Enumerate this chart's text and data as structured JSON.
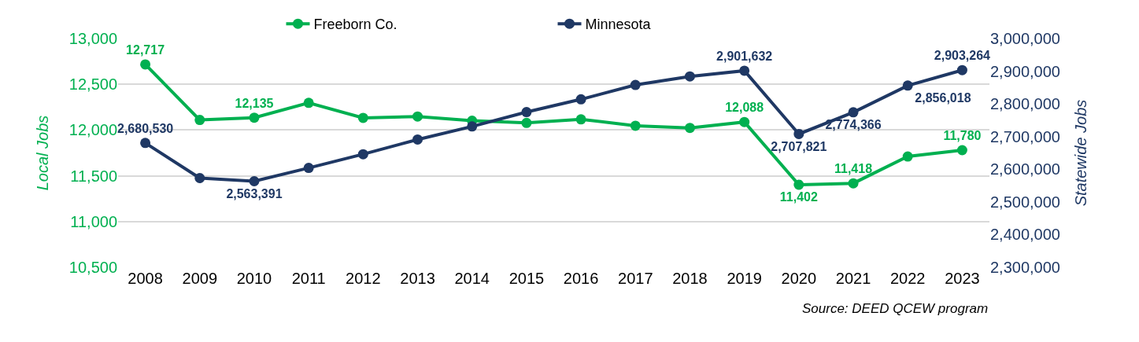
{
  "chart_data": {
    "type": "line",
    "categories": [
      "2008",
      "2009",
      "2010",
      "2011",
      "2012",
      "2013",
      "2014",
      "2015",
      "2016",
      "2017",
      "2018",
      "2019",
      "2020",
      "2021",
      "2022",
      "2023"
    ],
    "series": [
      {
        "name": "Freeborn Co.",
        "color": "#00b050",
        "values": [
          12717,
          12110,
          12135,
          12297,
          12133,
          12148,
          12102,
          12078,
          12117,
          12047,
          12023,
          12088,
          11402,
          11418,
          11711,
          11780
        ],
        "value_labels": [
          "12,717",
          null,
          "12,135",
          null,
          null,
          null,
          null,
          null,
          null,
          null,
          null,
          "12,088",
          "11,402",
          "11,418",
          null,
          "11,780"
        ]
      },
      {
        "name": "Minnesota",
        "color": "#1f3864",
        "axis": "y2",
        "values": [
          2680530,
          2573000,
          2563391,
          2604000,
          2646000,
          2691000,
          2731000,
          2775000,
          2814000,
          2858000,
          2884000,
          2901632,
          2707821,
          2774366,
          2856018,
          2903264
        ],
        "value_labels": [
          "2,680,530",
          null,
          "2,563,391",
          null,
          null,
          null,
          null,
          null,
          null,
          null,
          null,
          "2,901,632",
          "2,707,821",
          "2,774,366",
          "2,856,018",
          "2,903,264"
        ]
      }
    ],
    "ylabel": "Local Jobs",
    "y2label": "Statewide Jobs",
    "ylim": [
      10500,
      13000
    ],
    "yticks": [
      {
        "value": 10500,
        "label": "10,500"
      },
      {
        "value": 11000,
        "label": "11,000"
      },
      {
        "value": 11500,
        "label": "11,500"
      },
      {
        "value": 12000,
        "label": "12,000"
      },
      {
        "value": 12500,
        "label": "12,500"
      },
      {
        "value": 13000,
        "label": "13,000"
      }
    ],
    "y2lim": [
      2300000,
      3000000
    ],
    "y2ticks": [
      {
        "value": 2300000,
        "label": "2,300,000"
      },
      {
        "value": 2400000,
        "label": "2,400,000"
      },
      {
        "value": 2500000,
        "label": "2,500,000"
      },
      {
        "value": 2600000,
        "label": "2,600,000"
      },
      {
        "value": 2700000,
        "label": "2,700,000"
      },
      {
        "value": 2800000,
        "label": "2,800,000"
      },
      {
        "value": 2900000,
        "label": "2,900,000"
      },
      {
        "value": 3000000,
        "label": "3,000,000"
      }
    ],
    "annotations": [
      "Source: DEED QCEW program"
    ],
    "grid": "y",
    "legend": "top",
    "marker": "circle",
    "line_style": "solid"
  }
}
